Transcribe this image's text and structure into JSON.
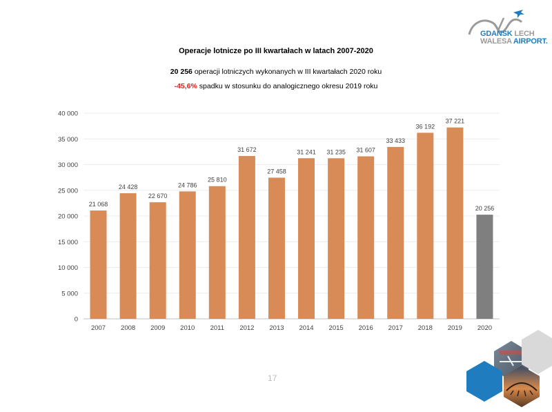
{
  "logo": {
    "line1_a": "GDANSK",
    "line1_b": "LECH",
    "line2_a": "WALESA",
    "line2_b": "AIRPORT."
  },
  "header": {
    "title": "Operacje lotnicze po III kwartałach w latach 2007-2020",
    "subtitle1_value": "20 256",
    "subtitle1_text": "operacji lotniczych wykonanych w III kwartałach 2020 roku",
    "subtitle2_value": "-45,6%",
    "subtitle2_text": "spadku w stosunku do analogicznego okresu 2019 roku"
  },
  "chart_data": {
    "type": "bar",
    "categories": [
      "2007",
      "2008",
      "2009",
      "2010",
      "2011",
      "2012",
      "2013",
      "2014",
      "2015",
      "2016",
      "2017",
      "2018",
      "2019",
      "2020"
    ],
    "values": [
      21068,
      24428,
      22670,
      24786,
      25810,
      31672,
      27458,
      31241,
      31235,
      31607,
      33433,
      36192,
      37221,
      20256
    ],
    "value_labels": [
      "21 068",
      "24 428",
      "22 670",
      "24 786",
      "25 810",
      "31 672",
      "27 458",
      "31 241",
      "31 235",
      "31 607",
      "33 433",
      "36 192",
      "37 221",
      "20 256"
    ],
    "ylim": [
      0,
      40000
    ],
    "yticks": [
      0,
      5000,
      10000,
      15000,
      20000,
      25000,
      30000,
      35000,
      40000
    ],
    "ytick_labels": [
      "0",
      "5 000",
      "10 000",
      "15 000",
      "20 000",
      "25 000",
      "30 000",
      "35 000",
      "40 000"
    ],
    "grid": true,
    "colors": {
      "bar": "#d98b57",
      "highlight": "#7f7f7f"
    },
    "highlight_category": "2020"
  },
  "footer": {
    "page_number": "17"
  }
}
